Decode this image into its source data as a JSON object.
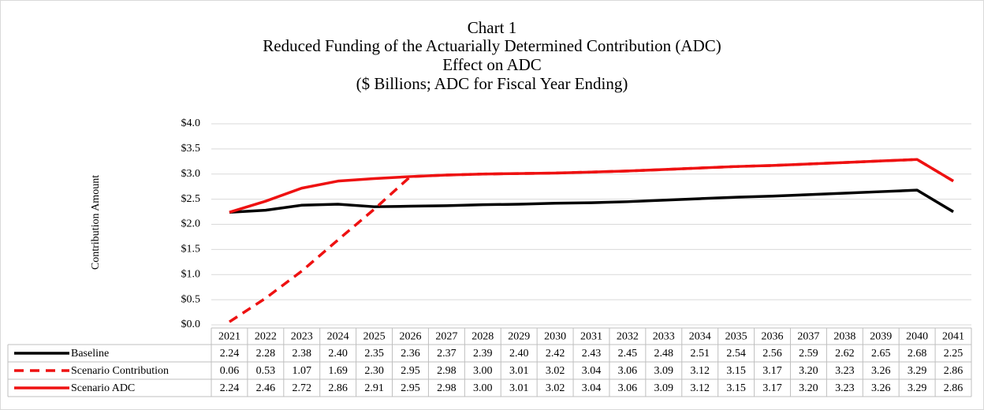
{
  "chart_data": {
    "type": "line",
    "title": "Chart 1",
    "subtitle": [
      "Reduced Funding of the Actuarially Determined Contribution (ADC)",
      "Effect on ADC",
      "($ Billions; ADC for Fiscal Year Ending)"
    ],
    "y_label": "Contribution Amount",
    "categories": [
      "2021",
      "2022",
      "2023",
      "2024",
      "2025",
      "2026",
      "2027",
      "2028",
      "2029",
      "2030",
      "2031",
      "2032",
      "2033",
      "2034",
      "2035",
      "2036",
      "2037",
      "2038",
      "2039",
      "2040",
      "2041"
    ],
    "ylim": [
      0,
      4
    ],
    "yticks": [
      {
        "value": 0,
        "label": "$0.0"
      },
      {
        "value": 0.5,
        "label": "$0.5"
      },
      {
        "value": 1,
        "label": "$1.0"
      },
      {
        "value": 1.5,
        "label": "$1.5"
      },
      {
        "value": 2,
        "label": "$2.0"
      },
      {
        "value": 2.5,
        "label": "$2.5"
      },
      {
        "value": 3,
        "label": "$3.0"
      },
      {
        "value": 3.5,
        "label": "$3.5"
      },
      {
        "value": 4,
        "label": "$4.0"
      }
    ],
    "grid": true,
    "data_table": true,
    "series": [
      {
        "name": "Baseline",
        "color": "#000000",
        "dashed": false,
        "values": [
          2.24,
          2.28,
          2.38,
          2.4,
          2.35,
          2.36,
          2.37,
          2.39,
          2.4,
          2.42,
          2.43,
          2.45,
          2.48,
          2.51,
          2.54,
          2.56,
          2.59,
          2.62,
          2.65,
          2.68,
          2.25
        ],
        "value_labels": [
          "2.24",
          "2.28",
          "2.38",
          "2.40",
          "2.35",
          "2.36",
          "2.37",
          "2.39",
          "2.40",
          "2.42",
          "2.43",
          "2.45",
          "2.48",
          "2.51",
          "2.54",
          "2.56",
          "2.59",
          "2.62",
          "2.65",
          "2.68",
          "2.25"
        ]
      },
      {
        "name": "Scenario Contribution",
        "color": "#ee1111",
        "dashed": true,
        "values": [
          0.06,
          0.53,
          1.07,
          1.69,
          2.3,
          2.95,
          2.98,
          3,
          3.01,
          3.02,
          3.04,
          3.06,
          3.09,
          3.12,
          3.15,
          3.17,
          3.2,
          3.23,
          3.26,
          3.29,
          2.86
        ],
        "value_labels": [
          "0.06",
          "0.53",
          "1.07",
          "1.69",
          "2.30",
          "2.95",
          "2.98",
          "3.00",
          "3.01",
          "3.02",
          "3.04",
          "3.06",
          "3.09",
          "3.12",
          "3.15",
          "3.17",
          "3.20",
          "3.23",
          "3.26",
          "3.29",
          "2.86"
        ]
      },
      {
        "name": "Scenario ADC",
        "color": "#ee1111",
        "dashed": false,
        "values": [
          2.24,
          2.46,
          2.72,
          2.86,
          2.91,
          2.95,
          2.98,
          3,
          3.01,
          3.02,
          3.04,
          3.06,
          3.09,
          3.12,
          3.15,
          3.17,
          3.2,
          3.23,
          3.26,
          3.29,
          2.86
        ],
        "value_labels": [
          "2.24",
          "2.46",
          "2.72",
          "2.86",
          "2.91",
          "2.95",
          "2.98",
          "3.00",
          "3.01",
          "3.02",
          "3.04",
          "3.06",
          "3.09",
          "3.12",
          "3.15",
          "3.17",
          "3.20",
          "3.23",
          "3.26",
          "3.29",
          "2.86"
        ]
      }
    ]
  }
}
